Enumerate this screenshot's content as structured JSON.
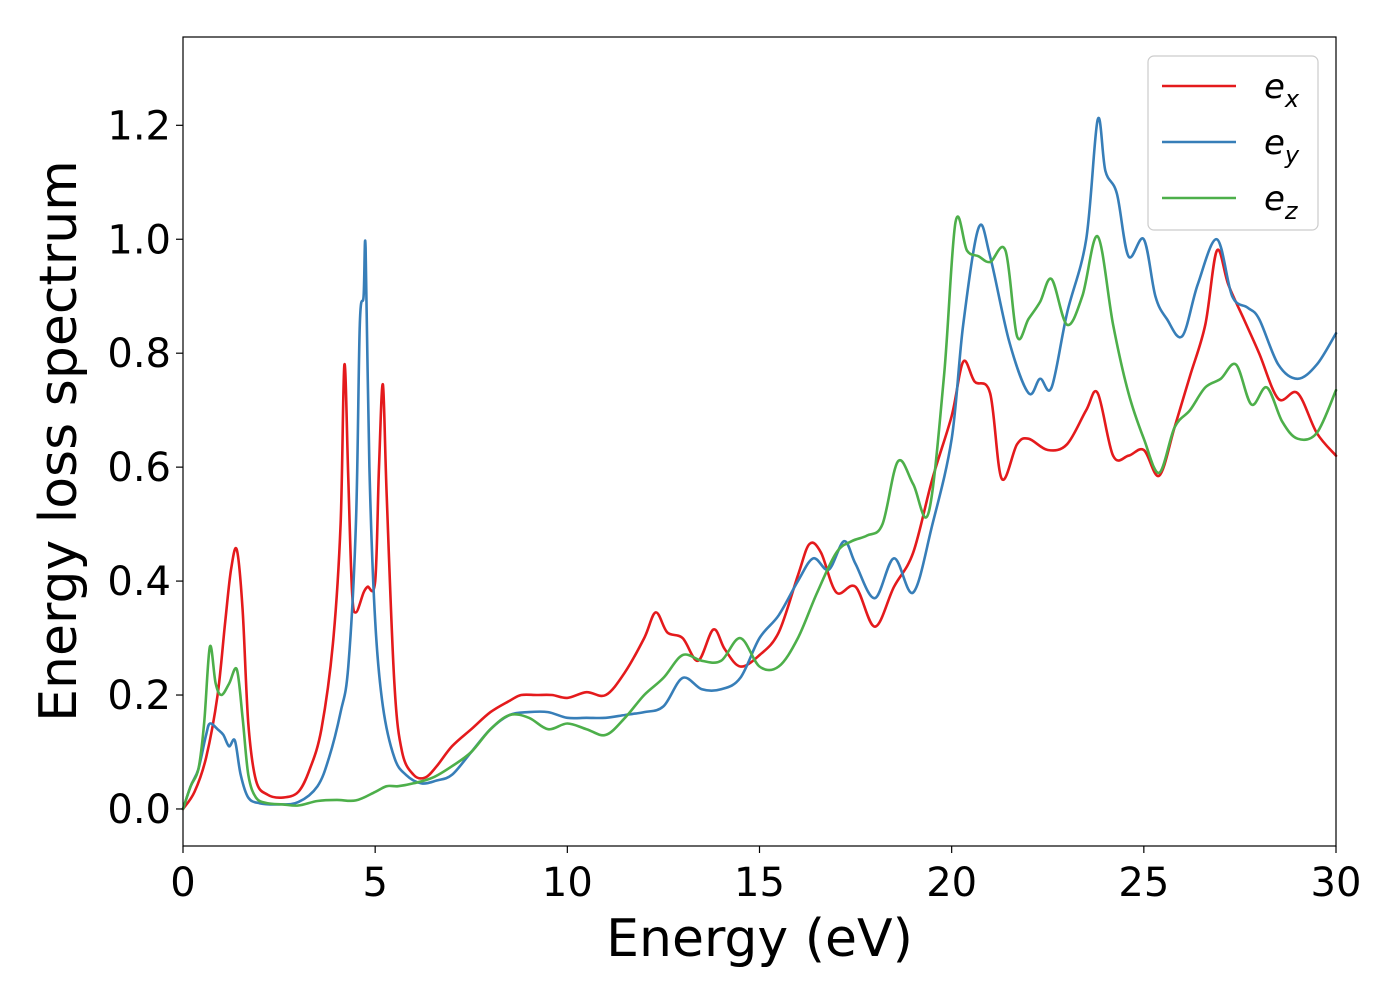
{
  "chart_data": {
    "type": "line",
    "title": "",
    "xlabel": "Energy (eV)",
    "ylabel": "Energy loss spectrum",
    "xlim": [
      0,
      30
    ],
    "ylim": [
      -0.065,
      1.355
    ],
    "xticks": [
      0,
      5,
      10,
      15,
      20,
      25,
      30
    ],
    "xtick_labels": [
      "0",
      "5",
      "10",
      "15",
      "20",
      "25",
      "30"
    ],
    "yticks": [
      0.0,
      0.2,
      0.4,
      0.6,
      0.8,
      1.0,
      1.2
    ],
    "ytick_labels": [
      "0.0",
      "0.2",
      "0.4",
      "0.6",
      "0.8",
      "1.0",
      "1.2"
    ],
    "grid": false,
    "legend_position": "top-right",
    "series": [
      {
        "name": "e_x",
        "legend_base": "e",
        "legend_sub": "x",
        "color": "#e41a1c",
        "x": [
          0.0,
          0.3,
          0.6,
          0.9,
          1.1,
          1.25,
          1.4,
          1.55,
          1.7,
          1.9,
          2.2,
          2.6,
          3.0,
          3.3,
          3.6,
          3.9,
          4.1,
          4.2,
          4.3,
          4.4,
          4.5,
          4.7,
          4.8,
          5.0,
          5.1,
          5.2,
          5.3,
          5.5,
          5.7,
          6.0,
          6.3,
          6.6,
          7.0,
          7.5,
          8.0,
          8.5,
          8.8,
          9.2,
          9.6,
          10.0,
          10.5,
          11.0,
          11.5,
          12.0,
          12.3,
          12.6,
          13.0,
          13.4,
          13.8,
          14.1,
          14.5,
          15.0,
          15.5,
          16.0,
          16.3,
          16.6,
          17.0,
          17.5,
          18.0,
          18.5,
          19.0,
          19.5,
          20.0,
          20.3,
          20.6,
          21.0,
          21.3,
          21.7,
          22.0,
          22.5,
          23.0,
          23.5,
          23.8,
          24.2,
          24.6,
          25.0,
          25.4,
          25.8,
          26.2,
          26.6,
          26.9,
          27.2,
          27.6,
          28.0,
          28.5,
          29.0,
          29.5,
          30.0
        ],
        "y": [
          0.0,
          0.03,
          0.09,
          0.2,
          0.33,
          0.42,
          0.455,
          0.35,
          0.15,
          0.05,
          0.025,
          0.02,
          0.03,
          0.07,
          0.14,
          0.29,
          0.5,
          0.78,
          0.58,
          0.38,
          0.345,
          0.38,
          0.39,
          0.4,
          0.6,
          0.745,
          0.55,
          0.22,
          0.1,
          0.06,
          0.055,
          0.075,
          0.11,
          0.14,
          0.17,
          0.19,
          0.2,
          0.2,
          0.2,
          0.195,
          0.205,
          0.2,
          0.24,
          0.3,
          0.345,
          0.31,
          0.3,
          0.26,
          0.315,
          0.28,
          0.25,
          0.27,
          0.31,
          0.41,
          0.465,
          0.45,
          0.38,
          0.39,
          0.32,
          0.39,
          0.45,
          0.58,
          0.69,
          0.785,
          0.75,
          0.73,
          0.58,
          0.64,
          0.65,
          0.63,
          0.64,
          0.7,
          0.73,
          0.62,
          0.62,
          0.63,
          0.585,
          0.67,
          0.76,
          0.85,
          0.98,
          0.92,
          0.86,
          0.8,
          0.72,
          0.73,
          0.66,
          0.62
        ]
      },
      {
        "name": "e_y",
        "legend_base": "e",
        "legend_sub": "y",
        "color": "#377eb8",
        "x": [
          0.0,
          0.2,
          0.4,
          0.6,
          0.7,
          0.9,
          1.05,
          1.2,
          1.35,
          1.5,
          1.7,
          2.0,
          2.5,
          3.0,
          3.5,
          3.8,
          4.1,
          4.3,
          4.5,
          4.6,
          4.7,
          4.75,
          4.85,
          5.0,
          5.2,
          5.5,
          5.8,
          6.2,
          6.6,
          7.0,
          7.5,
          8.0,
          8.5,
          9.0,
          9.5,
          10.0,
          10.5,
          11.0,
          11.5,
          12.0,
          12.5,
          13.0,
          13.5,
          14.0,
          14.5,
          15.0,
          15.5,
          16.0,
          16.4,
          16.8,
          17.2,
          17.5,
          18.0,
          18.5,
          19.0,
          19.5,
          20.0,
          20.3,
          20.7,
          21.0,
          21.5,
          22.0,
          22.3,
          22.6,
          23.0,
          23.5,
          23.8,
          24.0,
          24.3,
          24.6,
          25.0,
          25.3,
          25.6,
          26.0,
          26.4,
          26.9,
          27.3,
          27.7,
          28.0,
          28.5,
          29.0,
          29.5,
          30.0
        ],
        "y": [
          0.0,
          0.04,
          0.07,
          0.13,
          0.15,
          0.14,
          0.13,
          0.11,
          0.12,
          0.06,
          0.02,
          0.01,
          0.008,
          0.012,
          0.04,
          0.09,
          0.17,
          0.25,
          0.5,
          0.85,
          0.9,
          0.985,
          0.6,
          0.33,
          0.18,
          0.09,
          0.06,
          0.045,
          0.05,
          0.06,
          0.1,
          0.14,
          0.165,
          0.17,
          0.17,
          0.16,
          0.16,
          0.16,
          0.165,
          0.17,
          0.18,
          0.23,
          0.21,
          0.21,
          0.23,
          0.3,
          0.34,
          0.4,
          0.44,
          0.42,
          0.47,
          0.43,
          0.37,
          0.44,
          0.38,
          0.5,
          0.65,
          0.85,
          1.02,
          0.97,
          0.82,
          0.73,
          0.755,
          0.74,
          0.87,
          1.0,
          1.21,
          1.12,
          1.08,
          0.97,
          1.0,
          0.9,
          0.86,
          0.83,
          0.92,
          1.0,
          0.9,
          0.88,
          0.86,
          0.78,
          0.755,
          0.78,
          0.835
        ]
      },
      {
        "name": "e_z",
        "legend_base": "e",
        "legend_sub": "z",
        "color": "#4daf4a",
        "x": [
          0.0,
          0.2,
          0.4,
          0.55,
          0.7,
          0.85,
          1.0,
          1.2,
          1.4,
          1.55,
          1.7,
          1.9,
          2.2,
          2.6,
          3.0,
          3.5,
          4.0,
          4.5,
          5.0,
          5.3,
          5.6,
          6.0,
          6.5,
          7.0,
          7.5,
          8.0,
          8.5,
          9.0,
          9.5,
          10.0,
          10.5,
          11.0,
          11.5,
          12.0,
          12.5,
          13.0,
          13.5,
          14.0,
          14.5,
          15.0,
          15.5,
          16.0,
          16.5,
          17.0,
          17.4,
          17.8,
          18.2,
          18.6,
          19.0,
          19.4,
          19.8,
          20.1,
          20.4,
          20.7,
          21.0,
          21.4,
          21.7,
          22.0,
          22.3,
          22.6,
          23.0,
          23.4,
          23.8,
          24.2,
          24.6,
          25.0,
          25.4,
          25.8,
          26.2,
          26.6,
          27.0,
          27.4,
          27.8,
          28.2,
          28.6,
          29.0,
          29.5,
          30.0
        ],
        "y": [
          0.0,
          0.04,
          0.07,
          0.15,
          0.285,
          0.22,
          0.2,
          0.22,
          0.245,
          0.16,
          0.06,
          0.02,
          0.01,
          0.008,
          0.006,
          0.014,
          0.016,
          0.015,
          0.03,
          0.04,
          0.04,
          0.045,
          0.055,
          0.075,
          0.1,
          0.14,
          0.165,
          0.16,
          0.14,
          0.15,
          0.14,
          0.13,
          0.16,
          0.2,
          0.23,
          0.27,
          0.26,
          0.26,
          0.3,
          0.25,
          0.25,
          0.3,
          0.38,
          0.45,
          0.47,
          0.48,
          0.5,
          0.61,
          0.57,
          0.52,
          0.76,
          1.03,
          0.98,
          0.97,
          0.96,
          0.98,
          0.83,
          0.86,
          0.89,
          0.93,
          0.85,
          0.9,
          1.005,
          0.85,
          0.73,
          0.65,
          0.59,
          0.67,
          0.7,
          0.74,
          0.755,
          0.78,
          0.71,
          0.74,
          0.68,
          0.65,
          0.66,
          0.735
        ]
      }
    ]
  }
}
